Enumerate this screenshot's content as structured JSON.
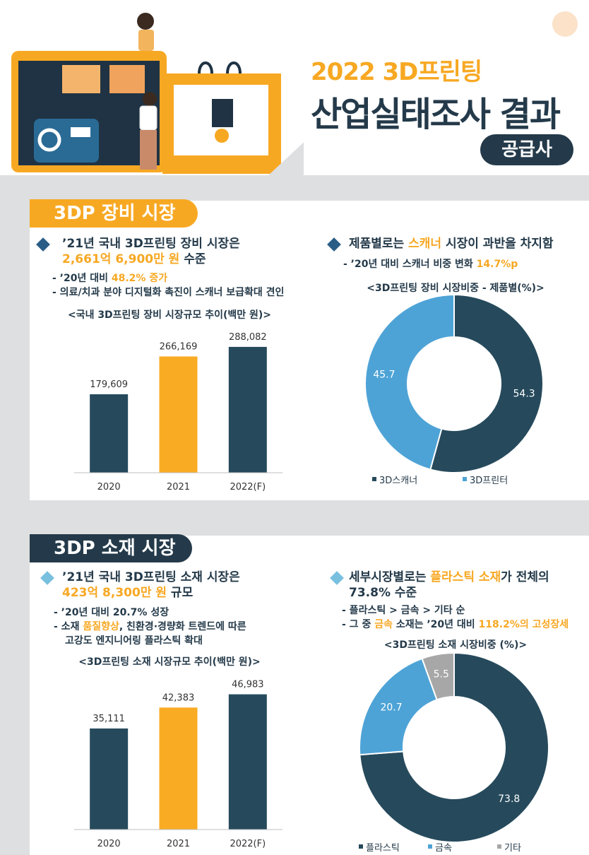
{
  "header": {
    "title_line1": "2022 3D프린팅",
    "title_line2": "산업실태조사 결과",
    "badge": "공급사"
  },
  "section1": {
    "tag": "3DP 장비 시장",
    "left": {
      "line1": "’21년 국내 3D프린팅 장비 시장은",
      "line2_hl": "2,661억 6,900만 원",
      "line2_rest": " 수준",
      "sub1_pre": "- ’20년 대비 ",
      "sub1_hl": "48.2% 증가",
      "sub2": "- 의료/치과 분야 디지털화 촉진이 스캐너 보급확대 견인"
    },
    "right": {
      "line1_pre": "제품별로는 ",
      "line1_hl": "스캐너",
      "line1_post": " 시장이 과반을 차지함",
      "sub1_pre": "- ’20년 대비 스캐너 비중 변화 ",
      "sub1_hl": "14.7%p"
    }
  },
  "section2": {
    "tag": "3DP 소재 시장",
    "left": {
      "line1": "’21년 국내 3D프린팅 소재 시장은",
      "line2_hl": "423억 8,300만 원",
      "line2_rest": " 규모",
      "sub1": "- ’20년 대비 20.7% 성장",
      "sub2_pre": "- 소재 ",
      "sub2_hl": "품질향상",
      "sub2_post": ", 친환경·경량화 트렌드에 따른",
      "sub3_hl": "고강도 엔지니어링 플라스틱 확대"
    },
    "right": {
      "line1_pre": "세부시장별로는 ",
      "line1_hl": "플라스틱 소재",
      "line1_post": "가 전체의",
      "line2": "73.8% 수준",
      "sub1": "- 플라스틱 > 금속 > 기타 순",
      "sub2_pre": "- 그 중 ",
      "sub2_hl1": "금속",
      "sub2_mid": " 소재는 ’20년 대비 ",
      "sub2_hl2": "118.2%의 고성장세"
    }
  },
  "chart_data": [
    {
      "type": "bar",
      "title": "<국내 3D프린팅 장비 시장규모 추이(백만 원)>",
      "categories": [
        "2020",
        "2021",
        "2022(F)"
      ],
      "values": [
        179609,
        266169,
        288082
      ],
      "labels": [
        "179,609",
        "266,169",
        "288,082"
      ],
      "colors": [
        "#264a5c",
        "#f9ab24",
        "#264a5c"
      ],
      "ylim": [
        0,
        330000
      ]
    },
    {
      "type": "pie",
      "title": "<3D프린팅 장비 시장비중 - 제품별(%)>",
      "slices": [
        {
          "name": "3D스캐너",
          "value": 54.3,
          "label": "54.3",
          "color": "#264a5c"
        },
        {
          "name": "3D프린터",
          "value": 45.7,
          "label": "45.7",
          "color": "#4ea3d6"
        }
      ],
      "legend_placement": "bottom"
    },
    {
      "type": "bar",
      "title": "<3D프린팅 소재 시장규모 추이(백만 원)>",
      "categories": [
        "2020",
        "2021",
        "2022(F)"
      ],
      "values": [
        35111,
        42383,
        46983
      ],
      "labels": [
        "35,111",
        "42,383",
        "46,983"
      ],
      "colors": [
        "#264a5c",
        "#f9ab24",
        "#264a5c"
      ],
      "ylim": [
        0,
        54000
      ]
    },
    {
      "type": "pie",
      "title": "<3D프린팅 소재 시장비중 (%)>",
      "slices": [
        {
          "name": "플라스틱",
          "value": 73.8,
          "label": "73.8",
          "color": "#264a5c"
        },
        {
          "name": "금속",
          "value": 20.7,
          "label": "20.7",
          "color": "#4ea3d6"
        },
        {
          "name": "기타",
          "value": 5.5,
          "label": "5.5",
          "color": "#a7a7a7"
        }
      ],
      "legend_placement": "bottom"
    }
  ]
}
